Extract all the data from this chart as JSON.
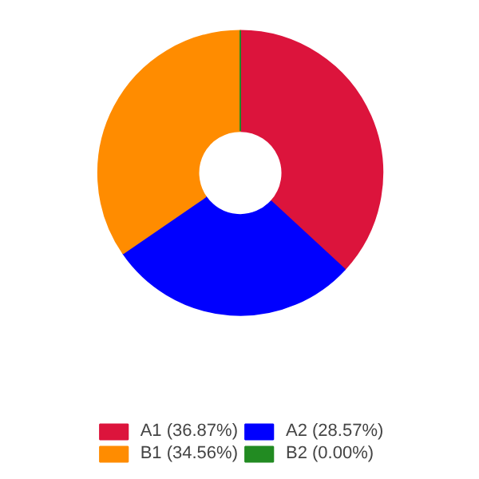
{
  "chart_data": {
    "type": "donut",
    "categories": [
      "A1 (36.87%)",
      "A2 (28.57%)",
      "B1 (34.56%)",
      "B2 (0.00%)"
    ],
    "values": [
      36.87,
      28.57,
      34.56,
      0.0
    ],
    "colors": [
      "#dc143c",
      "#0000ff",
      "#ff8c00",
      "#228b22"
    ],
    "legend": "bottom"
  }
}
